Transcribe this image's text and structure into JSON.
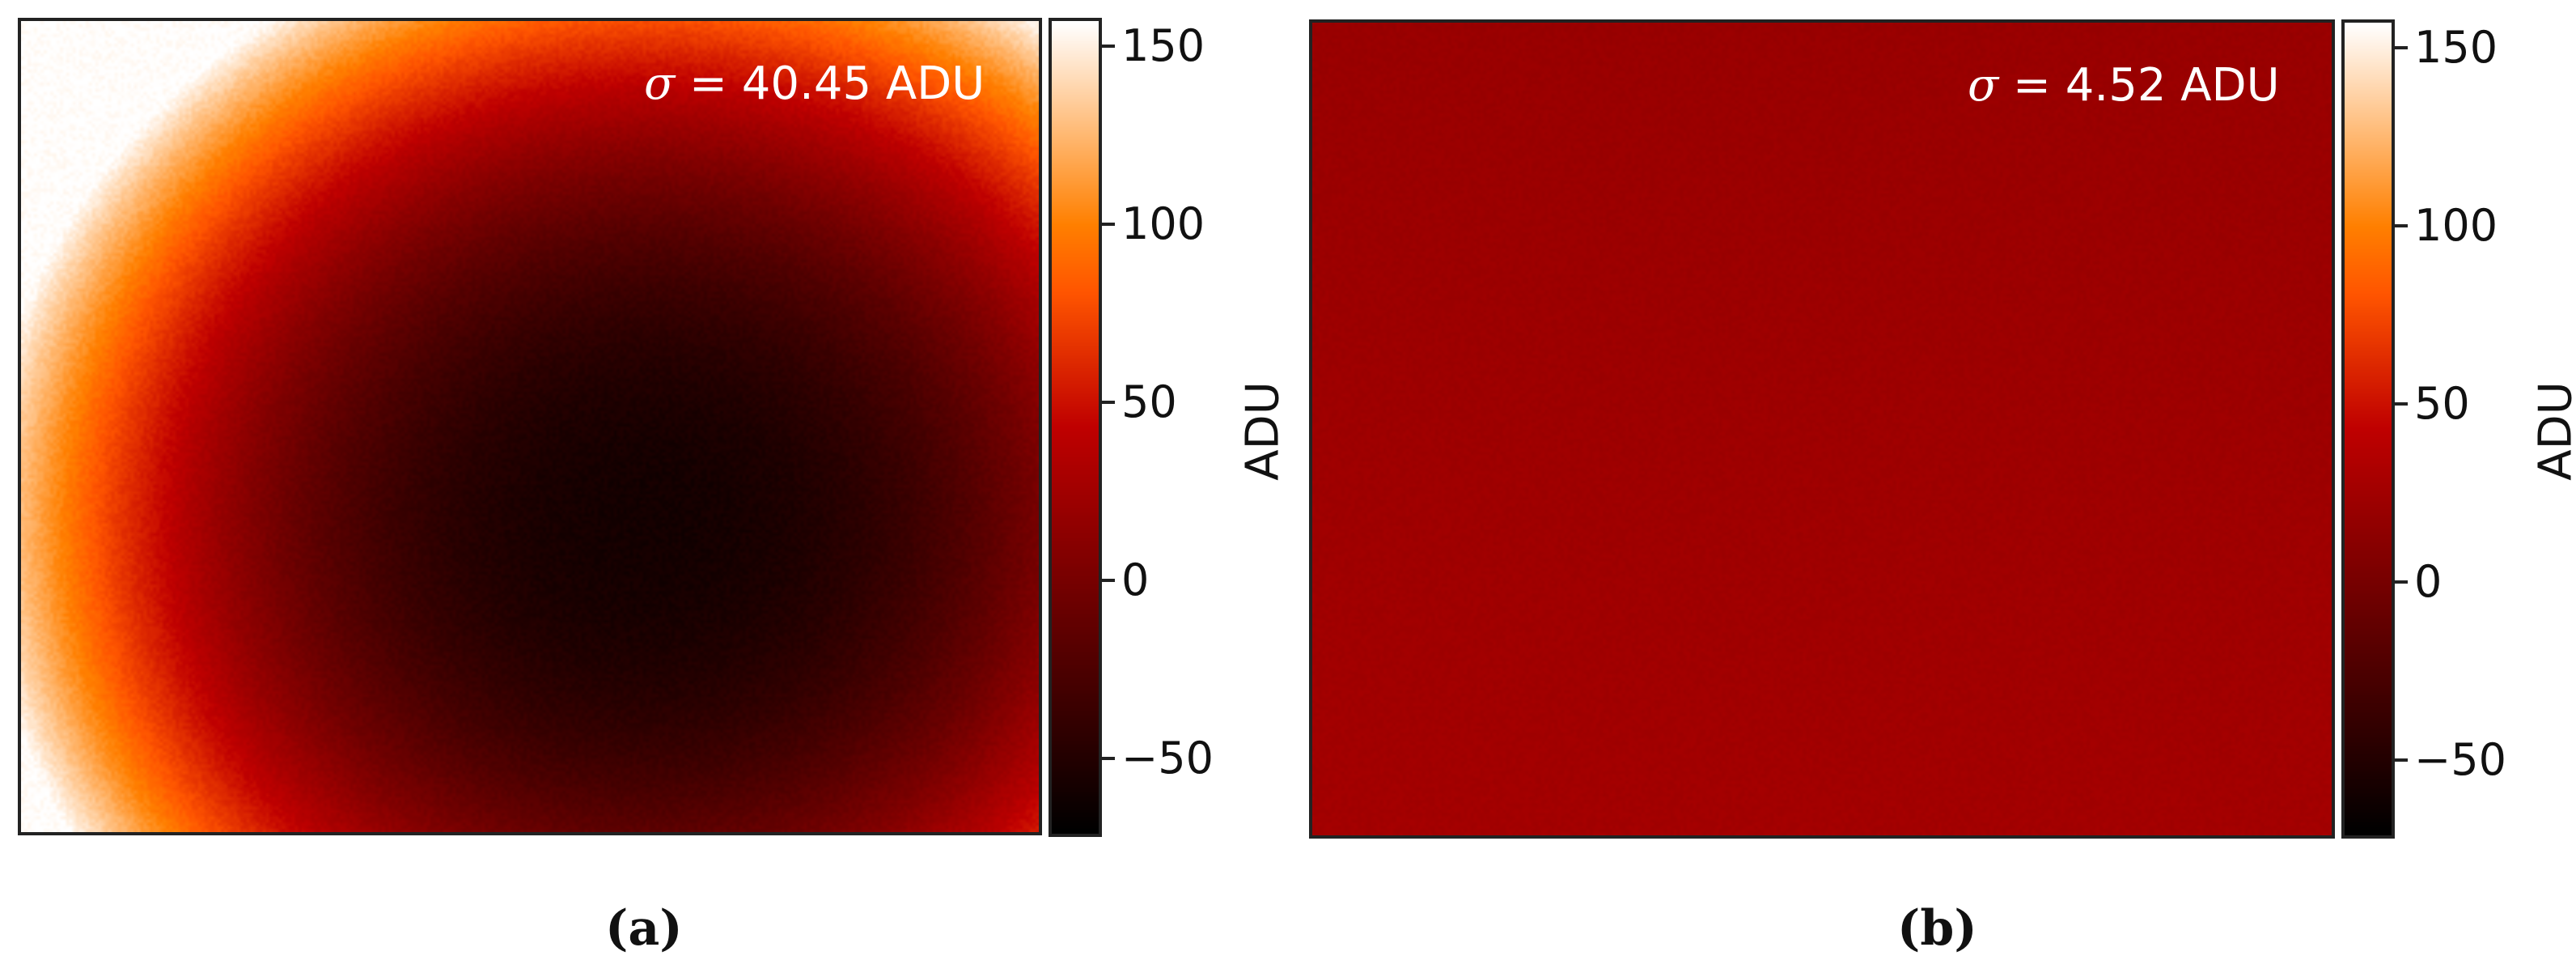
{
  "chart_data": [
    {
      "type": "heatmap",
      "panel_label": "(a)",
      "annotation": "σ = 40.45 ADU",
      "annotation_parts": {
        "symbol": "σ",
        "rest": " = 40.45 ADU"
      },
      "colormap": "gist_heat",
      "colorbar": {
        "label": "ADU",
        "ticks": [
          -50,
          0,
          50,
          100,
          150
        ],
        "tick_labels": [
          "−50",
          "0",
          "50",
          "100",
          "150"
        ],
        "vmin": -72,
        "vmax": 158
      },
      "pattern": "vignetting",
      "value_center": -60,
      "value_corner_max": 158
    },
    {
      "type": "heatmap",
      "panel_label": "(b)",
      "annotation": "σ = 4.52 ADU",
      "annotation_parts": {
        "symbol": "σ",
        "rest": " = 4.52 ADU"
      },
      "colormap": "gist_heat",
      "colorbar": {
        "label": "ADU",
        "ticks": [
          -50,
          0,
          50,
          100,
          150
        ],
        "tick_labels": [
          "−50",
          "0",
          "50",
          "100",
          "150"
        ],
        "vmin": -72,
        "vmax": 158
      },
      "pattern": "uniform",
      "value_center": 22,
      "value_corner_max": 20
    }
  ]
}
